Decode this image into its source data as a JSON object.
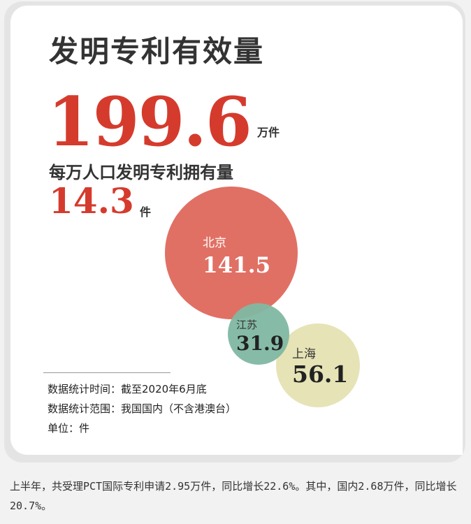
{
  "title": "发明专利有效量",
  "total": {
    "value": "199.6",
    "unit": "万件"
  },
  "per_capita": {
    "label": "每万人口发明专利拥有量",
    "value": "14.3",
    "unit": "件"
  },
  "bubbles": [
    {
      "region": "北京",
      "value": "141.5",
      "color": "#e06b5f"
    },
    {
      "region": "江苏",
      "value": "31.9",
      "color": "#7fb8a2"
    },
    {
      "region": "上海",
      "value": "56.1",
      "color": "#e6e3b6"
    }
  ],
  "notes": [
    "数据统计时间：截至2020年6月底",
    "数据统计范围：我国国内（不含港澳台）",
    "单位：件"
  ],
  "caption": "上半年，共受理PCT国际专利申请2.95万件，同比增长22.6%。其中，国内2.68万件，同比增长20.7%。"
}
